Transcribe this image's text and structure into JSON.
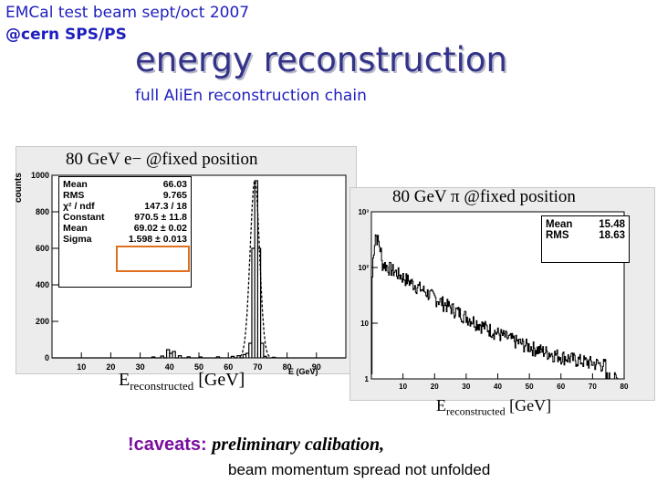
{
  "header": {
    "line1": "EMCal test beam sept/oct 2007",
    "line2": "@cern SPS/PS",
    "title": "energy reconstruction",
    "subtitle": "full AliEn reconstruction chain"
  },
  "chart_data": [
    {
      "type": "histogram",
      "label": "80 GeV e− @fixed position",
      "ylabel": "counts",
      "xlabel": "E (GeV)",
      "xlabel_big": "E",
      "xlabel_big_sub": "reconstructed",
      "xlabel_big_unit": "[GeV]",
      "xlim": [
        0,
        100
      ],
      "ylim": [
        0,
        1000
      ],
      "xticks": [
        "10",
        "20",
        "30",
        "40",
        "50",
        "60",
        "70",
        "80",
        "90"
      ],
      "yticks": [
        "0",
        "200",
        "400",
        "600",
        "800",
        "1000"
      ],
      "stats": [
        {
          "name": "Mean",
          "value": "66.03"
        },
        {
          "name": "RMS",
          "value": "9.765"
        },
        {
          "name": "χ² / ndf",
          "value": "147.3 / 18"
        },
        {
          "name": "Constant",
          "value": "970.5 ± 11.8"
        },
        {
          "name": "Mean",
          "value": "69.02 ± 0.02"
        },
        {
          "name": "Sigma",
          "value": "1.598 ± 0.013"
        }
      ],
      "highlight_color": "#e07020",
      "peak": {
        "mean": 69.02,
        "sigma": 1.598,
        "height": 970
      },
      "bins": [
        [
          34,
          5
        ],
        [
          37,
          10
        ],
        [
          39,
          45
        ],
        [
          40,
          25
        ],
        [
          41,
          35
        ],
        [
          43,
          12
        ],
        [
          46,
          6
        ],
        [
          50,
          5
        ],
        [
          56,
          6
        ],
        [
          61,
          8
        ],
        [
          63,
          12
        ],
        [
          65,
          18
        ],
        [
          66,
          25
        ],
        [
          67,
          80
        ],
        [
          68,
          600
        ],
        [
          69,
          970
        ],
        [
          70,
          600
        ],
        [
          71,
          80
        ],
        [
          72,
          8
        ],
        [
          75,
          3
        ]
      ]
    },
    {
      "type": "histogram",
      "label": "80 GeV π @fixed position",
      "scale": "log",
      "xlim": [
        0,
        80
      ],
      "ylim": [
        1,
        1000
      ],
      "xticks": [
        "10",
        "20",
        "30",
        "40",
        "50",
        "60",
        "70",
        "80"
      ],
      "yticks": [
        {
          "v": 1000,
          "t": "10³"
        },
        {
          "v": 100,
          "t": "10²"
        },
        {
          "v": 10,
          "t": "10"
        },
        {
          "v": 1,
          "t": "1"
        }
      ],
      "stats": [
        {
          "name": "Mean",
          "value": "15.48"
        },
        {
          "name": "RMS",
          "value": "18.63"
        }
      ],
      "xlabel_big": "E",
      "xlabel_big_sub": "reconstructed",
      "xlabel_big_unit": "[GeV]"
    }
  ],
  "caveats": {
    "head": "!caveats:",
    "italic": "preliminary calibation,",
    "line2": "beam momentum spread not unfolded"
  }
}
